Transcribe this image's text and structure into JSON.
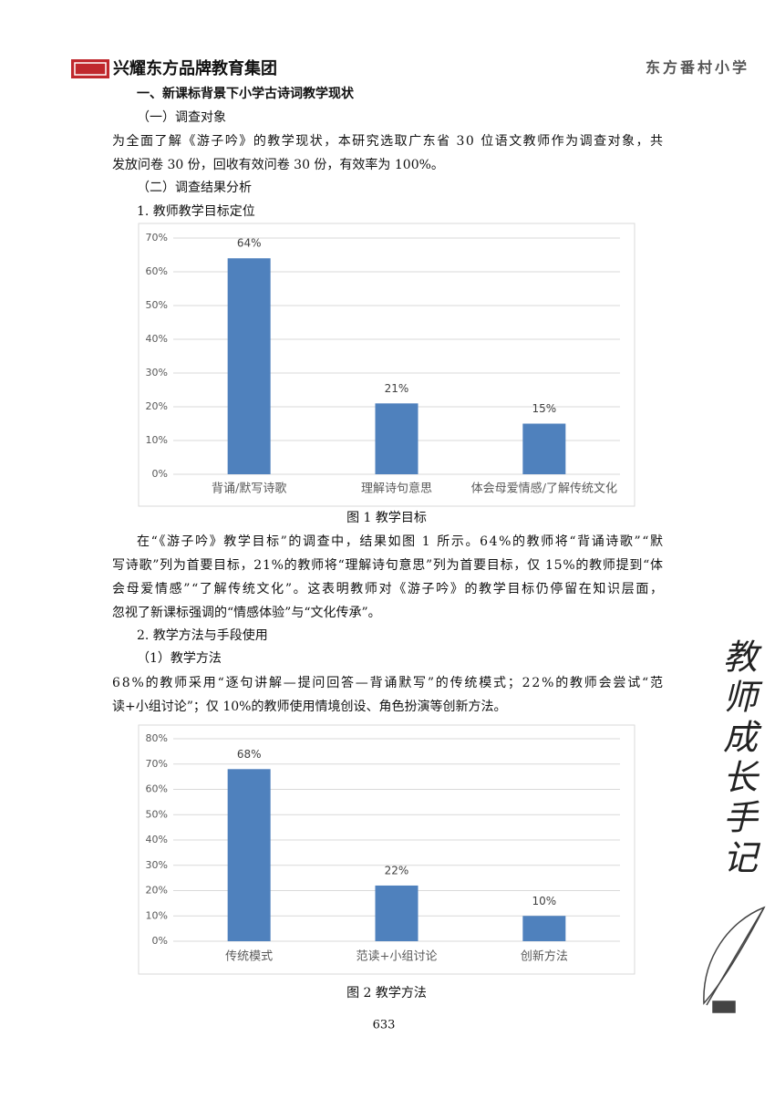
{
  "header": {
    "group": "兴耀东方品牌教育集团",
    "school": "东方番村小学"
  },
  "section_title": "一、新课标背景下小学古诗词教学现状",
  "sub1": "（一）调查对象",
  "paragraphs": [
    {
      "lines": [
        "为全面了解《游子吟》的教学现状，本研究选取广东省 30 位语文教师作为调查对象，共",
        "发放问卷 30 份，回收有效问卷 30 份，有效率为 100%。"
      ]
    },
    {
      "lines": [
        "在“《游子吟》教学目标”的调查中，结果如图 1 所示。64%的教师将“背诵诗歌”“默",
        "写诗歌”列为首要目标，21%的教师将“理解诗句意思”列为首要目标，仅 15%的教师提到“体",
        "会母爱情感”“了解传统文化”。这表明教师对《游子吟》的教学目标仍停留在知识层面，",
        "忽视了新课标强调的“情感体验”与“文化传承”。"
      ]
    },
    {
      "lines": [
        "68%的教师采用“逐句讲解—提问回答—背诵默写”的传统模式；22%的教师会尝试“范",
        "读+小组讨论”；仅 10%的教师使用情境创设、角色扮演等创新方法。"
      ]
    }
  ],
  "sub2": "（二）调查结果分析",
  "item1": "1. 教师教学目标定位",
  "item2": "2. 教学方法与手段使用",
  "item2_1": "（1）教学方法",
  "side_title": "教师成长手记",
  "page_number": "633",
  "chart_data": [
    {
      "type": "bar",
      "caption": "图 1 教学目标",
      "categories": [
        "背诵/默写诗歌",
        "理解诗句意思",
        "体会母爱情感/了解传统文化"
      ],
      "values": [
        64,
        21,
        15
      ],
      "value_labels": [
        "64%",
        "21%",
        "15%"
      ],
      "color": "#4f81bd",
      "ylim": [
        0,
        70
      ],
      "yticks": [
        {
          "value": 0,
          "label": "0%"
        },
        {
          "value": 10,
          "label": "10%"
        },
        {
          "value": 20,
          "label": "20%"
        },
        {
          "value": 30,
          "label": "30%"
        },
        {
          "value": 40,
          "label": "40%"
        },
        {
          "value": 50,
          "label": "50%"
        },
        {
          "value": 60,
          "label": "60%"
        },
        {
          "value": 70,
          "label": "70%"
        }
      ],
      "grid": true
    },
    {
      "type": "bar",
      "caption": "图 2 教学方法",
      "categories": [
        "传统模式",
        "范读+小组讨论",
        "创新方法"
      ],
      "values": [
        68,
        22,
        10
      ],
      "value_labels": [
        "68%",
        "22%",
        "10%"
      ],
      "color": "#4f81bd",
      "ylim": [
        0,
        80
      ],
      "yticks": [
        {
          "value": 0,
          "label": "0%"
        },
        {
          "value": 10,
          "label": "10%"
        },
        {
          "value": 20,
          "label": "20%"
        },
        {
          "value": 30,
          "label": "30%"
        },
        {
          "value": 40,
          "label": "40%"
        },
        {
          "value": 50,
          "label": "50%"
        },
        {
          "value": 60,
          "label": "60%"
        },
        {
          "value": 70,
          "label": "70%"
        },
        {
          "value": 80,
          "label": "80%"
        }
      ],
      "grid": true
    }
  ]
}
